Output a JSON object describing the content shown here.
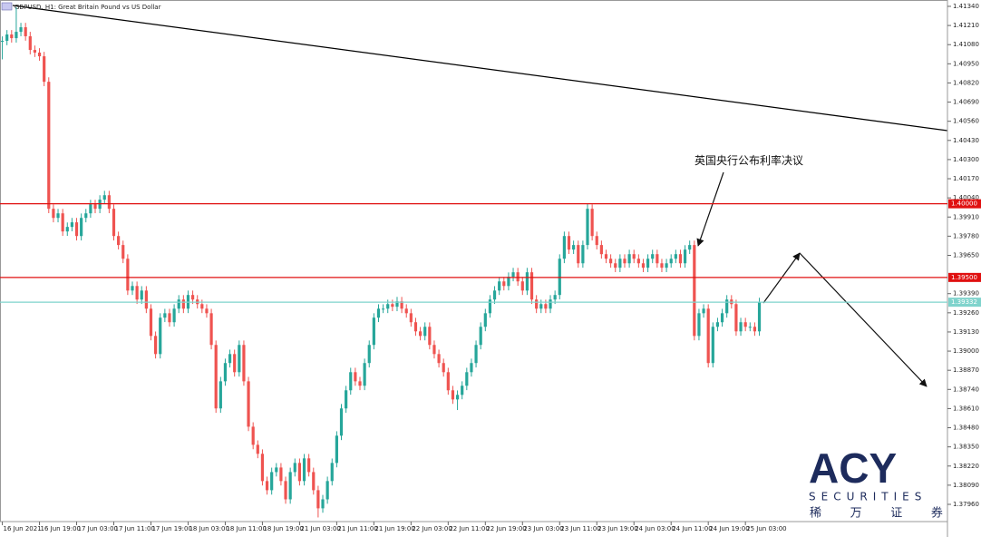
{
  "chart_data": {
    "type": "candlestick",
    "title": "GBPUSD, H1:  Great Britain Pound vs US Dollar",
    "annotation": "英国央行公布利率决议",
    "watermark": {
      "brand": "ACY",
      "tagline": "SECURITIES",
      "chinese": "稀 万 证 券"
    },
    "up_color": "#26a69a",
    "down_color": "#ef5350",
    "grid": false,
    "xlim": [
      -0.5,
      203.5
    ],
    "ylim": [
      1.37843,
      1.41383
    ],
    "xticks": [
      {
        "value": 0,
        "label": "16 Jun 2021"
      },
      {
        "value": 8,
        "label": "16 Jun 19:00"
      },
      {
        "value": 16,
        "label": "17 Jun 03:00"
      },
      {
        "value": 24,
        "label": "17 Jun 11:00"
      },
      {
        "value": 32,
        "label": "17 Jun 19:00"
      },
      {
        "value": 40,
        "label": "18 Jun 03:00"
      },
      {
        "value": 48,
        "label": "18 Jun 11:00"
      },
      {
        "value": 56,
        "label": "18 Jun 19:00"
      },
      {
        "value": 64,
        "label": "21 Jun 03:00"
      },
      {
        "value": 72,
        "label": "21 Jun 11:00"
      },
      {
        "value": 80,
        "label": "21 Jun 19:00"
      },
      {
        "value": 88,
        "label": "22 Jun 03:00"
      },
      {
        "value": 96,
        "label": "22 Jun 11:00"
      },
      {
        "value": 104,
        "label": "22 Jun 19:00"
      },
      {
        "value": 112,
        "label": "23 Jun 03:00"
      },
      {
        "value": 120,
        "label": "23 Jun 11:00"
      },
      {
        "value": 128,
        "label": "23 Jun 19:00"
      },
      {
        "value": 136,
        "label": "24 Jun 03:00"
      },
      {
        "value": 144,
        "label": "24 Jun 11:00"
      },
      {
        "value": 152,
        "label": "24 Jun 19:00"
      },
      {
        "value": 160,
        "label": "25 Jun 03:00"
      }
    ],
    "yticks": [
      {
        "value": 1.4134,
        "label": "1.41340"
      },
      {
        "value": 1.4121,
        "label": "1.41210"
      },
      {
        "value": 1.4108,
        "label": "1.41080"
      },
      {
        "value": 1.4095,
        "label": "1.40950"
      },
      {
        "value": 1.4082,
        "label": "1.40820"
      },
      {
        "value": 1.4069,
        "label": "1.40690"
      },
      {
        "value": 1.4056,
        "label": "1.40560"
      },
      {
        "value": 1.4043,
        "label": "1.40430"
      },
      {
        "value": 1.403,
        "label": "1.40300"
      },
      {
        "value": 1.4017,
        "label": "1.40170"
      },
      {
        "value": 1.4004,
        "label": "1.40040"
      },
      {
        "value": 1.3991,
        "label": "1.39910"
      },
      {
        "value": 1.3978,
        "label": "1.39780"
      },
      {
        "value": 1.3965,
        "label": "1.39650"
      },
      {
        "value": 1.3939,
        "label": "1.39390"
      },
      {
        "value": 1.3926,
        "label": "1.39260"
      },
      {
        "value": 1.3913,
        "label": "1.39130"
      },
      {
        "value": 1.39,
        "label": "1.39000"
      },
      {
        "value": 1.3887,
        "label": "1.38870"
      },
      {
        "value": 1.3874,
        "label": "1.38740"
      },
      {
        "value": 1.3861,
        "label": "1.38610"
      },
      {
        "value": 1.3848,
        "label": "1.38480"
      },
      {
        "value": 1.3835,
        "label": "1.38350"
      },
      {
        "value": 1.3822,
        "label": "1.38220"
      },
      {
        "value": 1.3809,
        "label": "1.38090"
      },
      {
        "value": 1.3796,
        "label": "1.37960"
      }
    ],
    "levels": [
      {
        "value": 1.4,
        "label": "1.40000",
        "color": "#e01010",
        "text_color": "#ffffff"
      },
      {
        "value": 1.395,
        "label": "1.39500",
        "color": "#e01010",
        "text_color": "#ffffff"
      },
      {
        "value": 1.39332,
        "label": "1.39332",
        "color": "#7fd3cc",
        "text_color": "#ffffff"
      }
    ],
    "open": [
      1.411,
      1.41106,
      1.41149,
      1.41124,
      1.41167,
      1.41198,
      1.41137,
      1.41044,
      1.41026,
      1.41001,
      1.40828,
      1.39966,
      1.39904,
      1.39935,
      1.39812,
      1.39843,
      1.39874,
      1.39781,
      1.39904,
      1.39935,
      1.39997,
      1.39966,
      1.40028,
      1.40058,
      1.39966,
      1.39781,
      1.3972,
      1.39627,
      1.39411,
      1.39442,
      1.3935,
      1.39411,
      1.39288,
      1.39103,
      1.3898,
      1.39227,
      1.39257,
      1.39196,
      1.39288,
      1.3935,
      1.39288,
      1.39381,
      1.3935,
      1.39319,
      1.39288,
      1.39257,
      1.39042,
      1.38611,
      1.38795,
      1.38919,
      1.3898,
      1.38857,
      1.39042,
      1.38795,
      1.38487,
      1.38364,
      1.38303,
      1.38118,
      1.38056,
      1.38179,
      1.3821,
      1.38118,
      1.37994,
      1.38179,
      1.38241,
      1.38118,
      1.38272,
      1.38179,
      1.38056,
      1.37933,
      1.37994,
      1.38118,
      1.38241,
      1.38426,
      1.38611,
      1.38734,
      1.38857,
      1.38795,
      1.38765,
      1.38919,
      1.39042,
      1.39227,
      1.39288,
      1.39288,
      1.39319,
      1.39301,
      1.39338,
      1.39288,
      1.39257,
      1.39196,
      1.39134,
      1.39103,
      1.39165,
      1.39042,
      1.3898,
      1.38919,
      1.38857,
      1.38734,
      1.38672,
      1.38703,
      1.38765,
      1.38857,
      1.38919,
      1.39042,
      1.39165,
      1.39257,
      1.3935,
      1.39411,
      1.39473,
      1.39442,
      1.39504,
      1.39535,
      1.39473,
      1.39411,
      1.39535,
      1.3935,
      1.39288,
      1.39319,
      1.39288,
      1.3935,
      1.39381,
      1.39627,
      1.39781,
      1.39689,
      1.3972,
      1.39596,
      1.3972,
      1.39966,
      1.39781,
      1.3972,
      1.39658,
      1.39627,
      1.39596,
      1.39566,
      1.39627,
      1.39596,
      1.39658,
      1.39627,
      1.39596,
      1.39566,
      1.39627,
      1.39658,
      1.39596,
      1.39566,
      1.39596,
      1.39627,
      1.39658,
      1.39596,
      1.39689,
      1.3972,
      1.39103,
      1.39257,
      1.39288,
      1.38919,
      1.39165,
      1.39196,
      1.39257,
      1.3935,
      1.39319,
      1.39134,
      1.39196,
      1.39165,
      1.39165,
      1.39134
    ],
    "high": [
      1.41136,
      1.41179,
      1.41179,
      1.41334,
      1.41228,
      1.41228,
      1.41167,
      1.41074,
      1.41056,
      1.41031,
      1.40858,
      1.39996,
      1.39965,
      1.39965,
      1.39873,
      1.39904,
      1.39904,
      1.39934,
      1.39965,
      1.40027,
      1.40027,
      1.40058,
      1.40088,
      1.40088,
      1.39996,
      1.39811,
      1.3975,
      1.39657,
      1.39472,
      1.39472,
      1.39441,
      1.39441,
      1.39318,
      1.39133,
      1.39257,
      1.39287,
      1.39287,
      1.39318,
      1.3938,
      1.3938,
      1.39411,
      1.39411,
      1.3938,
      1.39349,
      1.39318,
      1.39287,
      1.39072,
      1.38825,
      1.38949,
      1.3901,
      1.3901,
      1.39072,
      1.39072,
      1.38825,
      1.38517,
      1.38394,
      1.38333,
      1.38148,
      1.38209,
      1.3824,
      1.3824,
      1.38148,
      1.38209,
      1.38271,
      1.38271,
      1.38302,
      1.38302,
      1.38209,
      1.38086,
      1.38024,
      1.38148,
      1.38271,
      1.38456,
      1.38641,
      1.38764,
      1.38887,
      1.38887,
      1.38825,
      1.38949,
      1.39072,
      1.39257,
      1.39318,
      1.39318,
      1.39349,
      1.39349,
      1.39368,
      1.39368,
      1.39318,
      1.39287,
      1.39226,
      1.39164,
      1.39195,
      1.39195,
      1.39072,
      1.3901,
      1.38949,
      1.38887,
      1.38764,
      1.38733,
      1.38795,
      1.38887,
      1.38949,
      1.39072,
      1.39195,
      1.39287,
      1.3938,
      1.39441,
      1.39503,
      1.39503,
      1.39534,
      1.39565,
      1.39565,
      1.39503,
      1.39565,
      1.39565,
      1.3938,
      1.39349,
      1.39349,
      1.3938,
      1.39411,
      1.39657,
      1.39811,
      1.39811,
      1.3975,
      1.3975,
      1.3975,
      1.4,
      1.39996,
      1.39811,
      1.3975,
      1.39688,
      1.39657,
      1.39626,
      1.39657,
      1.39657,
      1.39688,
      1.39688,
      1.39657,
      1.39626,
      1.39657,
      1.39688,
      1.39688,
      1.39626,
      1.39626,
      1.39657,
      1.39688,
      1.39688,
      1.39719,
      1.3975,
      1.3975,
      1.39287,
      1.39318,
      1.39318,
      1.39195,
      1.39226,
      1.39287,
      1.3938,
      1.3938,
      1.39349,
      1.39226,
      1.39226,
      1.39195,
      1.39195,
      1.39362
    ],
    "low": [
      1.4098,
      1.41076,
      1.41094,
      1.41094,
      1.41137,
      1.41107,
      1.41014,
      1.40996,
      1.40971,
      1.40798,
      1.39936,
      1.39874,
      1.39874,
      1.39782,
      1.39782,
      1.39813,
      1.39751,
      1.39751,
      1.39874,
      1.39905,
      1.39936,
      1.39936,
      1.39998,
      1.39936,
      1.39751,
      1.3969,
      1.39597,
      1.39381,
      1.39381,
      1.3932,
      1.3932,
      1.39258,
      1.39073,
      1.3895,
      1.3895,
      1.39197,
      1.39166,
      1.39166,
      1.39258,
      1.39258,
      1.39258,
      1.3932,
      1.39289,
      1.39258,
      1.39227,
      1.39012,
      1.38581,
      1.38581,
      1.38765,
      1.38889,
      1.38827,
      1.38827,
      1.38765,
      1.38457,
      1.38334,
      1.38273,
      1.38088,
      1.38026,
      1.38026,
      1.38149,
      1.38088,
      1.37964,
      1.37964,
      1.38149,
      1.38088,
      1.38088,
      1.38149,
      1.38026,
      1.37871,
      1.37903,
      1.37964,
      1.38088,
      1.38211,
      1.38396,
      1.38581,
      1.38704,
      1.38765,
      1.38735,
      1.38735,
      1.38889,
      1.39012,
      1.39197,
      1.39258,
      1.39258,
      1.39271,
      1.39271,
      1.39258,
      1.39227,
      1.39166,
      1.39104,
      1.39073,
      1.39073,
      1.39012,
      1.3895,
      1.38889,
      1.38827,
      1.38704,
      1.38642,
      1.386,
      1.38673,
      1.38735,
      1.38827,
      1.38889,
      1.39012,
      1.39135,
      1.39227,
      1.3932,
      1.39381,
      1.39412,
      1.39412,
      1.39474,
      1.39443,
      1.39381,
      1.39381,
      1.3932,
      1.39258,
      1.39258,
      1.39258,
      1.39258,
      1.3932,
      1.39351,
      1.39597,
      1.39659,
      1.39659,
      1.39566,
      1.39566,
      1.3969,
      1.39751,
      1.3969,
      1.39628,
      1.39597,
      1.39566,
      1.39536,
      1.39536,
      1.39566,
      1.39566,
      1.39597,
      1.39566,
      1.39536,
      1.39536,
      1.39597,
      1.39566,
      1.39536,
      1.39536,
      1.39566,
      1.39597,
      1.39566,
      1.39566,
      1.39659,
      1.39073,
      1.39073,
      1.39227,
      1.38889,
      1.38889,
      1.39135,
      1.39166,
      1.39227,
      1.39289,
      1.39104,
      1.39104,
      1.39135,
      1.39135,
      1.39104,
      1.39104
    ],
    "close": [
      1.41106,
      1.41149,
      1.41124,
      1.41167,
      1.41198,
      1.41137,
      1.41044,
      1.41026,
      1.41001,
      1.40828,
      1.39966,
      1.39904,
      1.39935,
      1.39812,
      1.39843,
      1.39874,
      1.39781,
      1.39904,
      1.39935,
      1.39997,
      1.39966,
      1.40028,
      1.40058,
      1.39966,
      1.39781,
      1.3972,
      1.39627,
      1.39411,
      1.39442,
      1.3935,
      1.39411,
      1.39288,
      1.39103,
      1.3898,
      1.39227,
      1.39257,
      1.39196,
      1.39288,
      1.3935,
      1.39288,
      1.39381,
      1.3935,
      1.39319,
      1.39288,
      1.39257,
      1.39042,
      1.38611,
      1.38795,
      1.38919,
      1.3898,
      1.38857,
      1.39042,
      1.38795,
      1.38487,
      1.38364,
      1.38303,
      1.38118,
      1.38056,
      1.38179,
      1.3821,
      1.38118,
      1.37994,
      1.38179,
      1.38241,
      1.38118,
      1.38272,
      1.38179,
      1.38056,
      1.37933,
      1.37994,
      1.38118,
      1.38241,
      1.38426,
      1.38611,
      1.38734,
      1.38857,
      1.38795,
      1.38765,
      1.38919,
      1.39042,
      1.39227,
      1.39288,
      1.39288,
      1.39319,
      1.39301,
      1.39338,
      1.39288,
      1.39257,
      1.39196,
      1.39134,
      1.39103,
      1.39165,
      1.39042,
      1.3898,
      1.38919,
      1.38857,
      1.38734,
      1.38672,
      1.38703,
      1.38765,
      1.38857,
      1.38919,
      1.39042,
      1.39165,
      1.39257,
      1.3935,
      1.39411,
      1.39473,
      1.39442,
      1.39504,
      1.39535,
      1.39473,
      1.39411,
      1.39535,
      1.3935,
      1.39288,
      1.39319,
      1.39288,
      1.3935,
      1.39381,
      1.39627,
      1.39781,
      1.39689,
      1.3972,
      1.39596,
      1.3972,
      1.39966,
      1.39781,
      1.3972,
      1.39658,
      1.39627,
      1.39596,
      1.39566,
      1.39627,
      1.39596,
      1.39658,
      1.39627,
      1.39596,
      1.39566,
      1.39627,
      1.39658,
      1.39596,
      1.39566,
      1.39596,
      1.39627,
      1.39658,
      1.39596,
      1.39689,
      1.3972,
      1.39103,
      1.39257,
      1.39288,
      1.38919,
      1.39165,
      1.39196,
      1.39257,
      1.3935,
      1.39319,
      1.39134,
      1.39196,
      1.39165,
      1.39165,
      1.39134,
      1.39332
    ]
  }
}
